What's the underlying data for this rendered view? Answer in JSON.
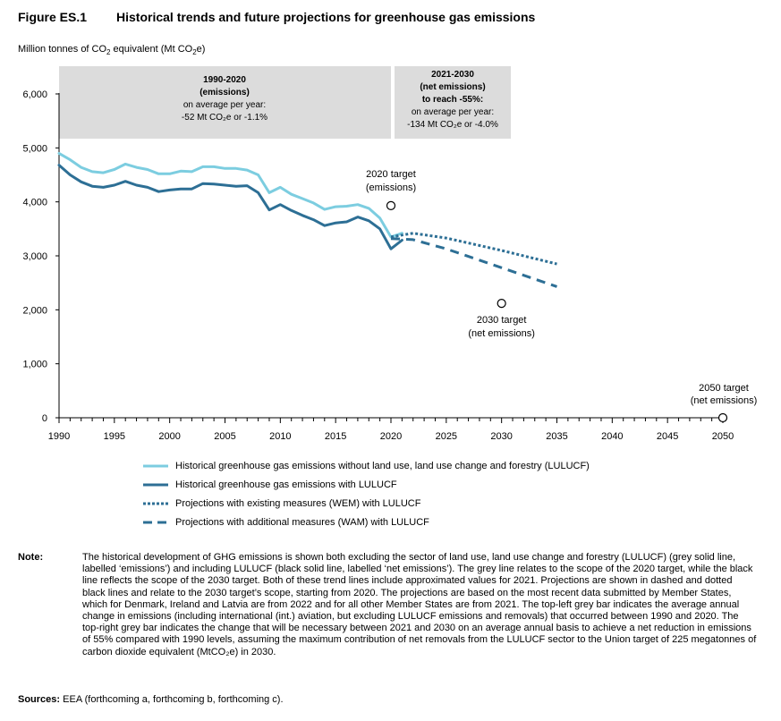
{
  "figure": {
    "number": "Figure ES.1",
    "title": "Historical trends and future projections for greenhouse gas emissions"
  },
  "unit_label": {
    "before": "Million tonnes of CO",
    "sub1": "2",
    "middle": " equivalent (Mt CO",
    "sub2": "2",
    "after": "e)"
  },
  "boxes": {
    "left": {
      "line1": "1990-2020",
      "line2": "(emissions)",
      "line3": "on average per year:",
      "line4": "-52 Mt CO₂e or -1.1%"
    },
    "right": {
      "line1": "2021-2030",
      "line2": "(net emissions)",
      "line3": "to reach -55%:",
      "line4": "on average per year:",
      "line5": "-134 Mt CO₂e or -4.0%"
    }
  },
  "colors": {
    "without_lulucf": "#7ccde0",
    "with_lulucf": "#2d6f95",
    "box_fill": "#dcdcdc",
    "axis": "#000000"
  },
  "chart_data": {
    "type": "line",
    "title": "Historical trends and future projections for greenhouse gas emissions",
    "ylabel": "Million tonnes of CO2 equivalent (Mt CO2e)",
    "xlabel": "",
    "xlim": [
      1990,
      2050
    ],
    "ylim": [
      0,
      6000
    ],
    "x_ticks": [
      1990,
      1995,
      2000,
      2005,
      2010,
      2015,
      2020,
      2025,
      2030,
      2035,
      2040,
      2045,
      2050
    ],
    "y_ticks": [
      0,
      1000,
      2000,
      3000,
      4000,
      5000,
      6000
    ],
    "y_tick_labels": [
      "0",
      "1,000",
      "2,000",
      "3,000",
      "4,000",
      "5,000",
      "6,000"
    ],
    "grid": false,
    "legend_position": "bottom",
    "series": [
      {
        "name": "Historical greenhouse gas emissions without land use, land use change and forestry (LULUCF)",
        "style": "solid",
        "color": "#7ccde0",
        "x": [
          1990,
          1991,
          1992,
          1993,
          1994,
          1995,
          1996,
          1997,
          1998,
          1999,
          2000,
          2001,
          2002,
          2003,
          2004,
          2005,
          2006,
          2007,
          2008,
          2009,
          2010,
          2011,
          2012,
          2013,
          2014,
          2015,
          2016,
          2017,
          2018,
          2019,
          2020,
          2021
        ],
        "y": [
          4900,
          4780,
          4640,
          4560,
          4540,
          4600,
          4700,
          4640,
          4600,
          4520,
          4520,
          4570,
          4560,
          4650,
          4650,
          4620,
          4620,
          4590,
          4500,
          4170,
          4270,
          4140,
          4060,
          3980,
          3860,
          3910,
          3920,
          3950,
          3880,
          3700,
          3350,
          3420
        ]
      },
      {
        "name": "Historical greenhouse gas emissions with LULUCF",
        "style": "solid",
        "color": "#2d6f95",
        "x": [
          1990,
          1991,
          1992,
          1993,
          1994,
          1995,
          1996,
          1997,
          1998,
          1999,
          2000,
          2001,
          2002,
          2003,
          2004,
          2005,
          2006,
          2007,
          2008,
          2009,
          2010,
          2011,
          2012,
          2013,
          2014,
          2015,
          2016,
          2017,
          2018,
          2019,
          2020,
          2021
        ],
        "y": [
          4680,
          4500,
          4370,
          4290,
          4270,
          4310,
          4380,
          4310,
          4270,
          4190,
          4220,
          4240,
          4240,
          4340,
          4330,
          4310,
          4290,
          4300,
          4170,
          3850,
          3950,
          3840,
          3750,
          3670,
          3560,
          3610,
          3630,
          3720,
          3650,
          3500,
          3130,
          3290
        ]
      },
      {
        "name": "Projections with existing measures (WEM) with LULUCF",
        "style": "dotted",
        "color": "#2d6f95",
        "x": [
          2020,
          2022,
          2025,
          2030,
          2035
        ],
        "y": [
          3350,
          3420,
          3330,
          3100,
          2850
        ]
      },
      {
        "name": "Projections with additional measures (WAM) with LULUCF",
        "style": "dashed",
        "color": "#2d6f95",
        "x": [
          2020,
          2022,
          2025,
          2030,
          2035
        ],
        "y": [
          3320,
          3300,
          3130,
          2780,
          2430
        ]
      }
    ],
    "targets": [
      {
        "label_line1": "2020 target",
        "label_line2": "(emissions)",
        "x": 2020,
        "y": 3930
      },
      {
        "label_line1": "2030 target",
        "label_line2": "(net emissions)",
        "x": 2030,
        "y": 2120
      },
      {
        "label_line1": "2050 target",
        "label_line2": "(net emissions)",
        "x": 2050,
        "y": 0
      }
    ]
  },
  "legend": {
    "item1": "Historical greenhouse gas emissions without land use, land use change and forestry (LULUCF)",
    "item2": "Historical greenhouse gas emissions with LULUCF",
    "item3": "Projections with existing measures (WEM) with LULUCF",
    "item4": "Projections with additional measures (WAM) with LULUCF"
  },
  "note": {
    "label": "Note:",
    "text": "The historical development of GHG emissions is shown both excluding the sector of land use, land use change and forestry (LULUCF) (grey solid line, labelled ‘emissions’) and including LULUCF (black solid line, labelled ‘net emissions’). The grey line relates to the scope of the 2020 target, while the black line reflects the scope of the 2030 target. Both of these trend lines include approximated values for 2021. Projections are shown in dashed and dotted black lines and relate to the 2030 target’s scope, starting from 2020. The projections are based on the most recent data submitted by Member States, which for Denmark, Ireland and Latvia are from 2022 and for all other Member States are from 2021. The top-left grey bar indicates the average annual change in emissions (including international (int.) aviation, but excluding LULUCF emissions and removals) that occurred between 1990 and 2020. The top-right grey bar indicates the change that will be necessary between 2021 and 2030 on an average annual basis to achieve a net reduction in emissions of 55% compared with 1990 levels, assuming the maximum contribution of net removals from the LULUCF sector to the Union target of 225 megatonnes of carbon dioxide equivalent (MtCO₂e) in 2030."
  },
  "sources": {
    "label": "Sources:",
    "text": "EEA (forthcoming a, forthcoming b, forthcoming c)."
  }
}
